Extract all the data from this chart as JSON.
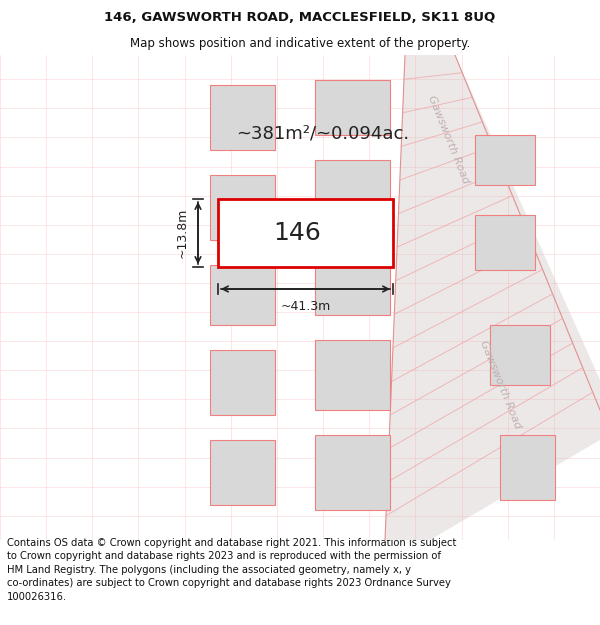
{
  "title_line1": "146, GAWSWORTH ROAD, MACCLESFIELD, SK11 8UQ",
  "title_line2": "Map shows position and indicative extent of the property.",
  "footer_wrapped": "Contains OS data © Crown copyright and database right 2021. This information is subject\nto Crown copyright and database rights 2023 and is reproduced with the permission of\nHM Land Registry. The polygons (including the associated geometry, namely x, y\nco-ordinates) are subject to Crown copyright and database rights 2023 Ordnance Survey\n100026316.",
  "area_label": "~381m²/~0.094ac.",
  "width_label": "~41.3m",
  "height_label": "~13.8m",
  "number_label": "146",
  "bg_color": "#ffffff",
  "plot_color": "#dd0000",
  "building_fill": "#d8d8d8",
  "building_edge": "#f08080",
  "road_fill": "#ede8e8",
  "road_line": "#e09090",
  "grid_line": "#f0a0a0",
  "road_label_color": "#c0b0b0",
  "dim_color": "#222222",
  "title_fontsize": 9.5,
  "subtitle_fontsize": 8.5,
  "footer_fontsize": 7.2,
  "area_fontsize": 13,
  "number_fontsize": 18,
  "dim_fontsize": 9
}
